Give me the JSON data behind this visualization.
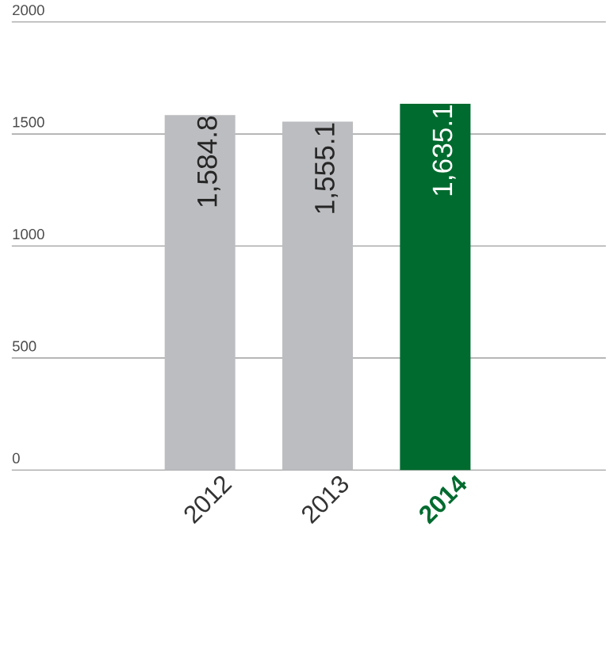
{
  "chart_data": {
    "type": "bar",
    "categories": [
      "2012",
      "2013",
      "2014"
    ],
    "values": [
      1584.8,
      1555.1,
      1635.1
    ],
    "value_labels": [
      "1,584.8",
      "1,555.1",
      "1,635.1"
    ],
    "colors": [
      "#bcbdc0",
      "#bcbdc0",
      "#006b2f"
    ],
    "ylim": [
      0,
      2000
    ],
    "yticks": [
      0,
      500,
      1000,
      1500,
      2000
    ],
    "grid": "y"
  }
}
